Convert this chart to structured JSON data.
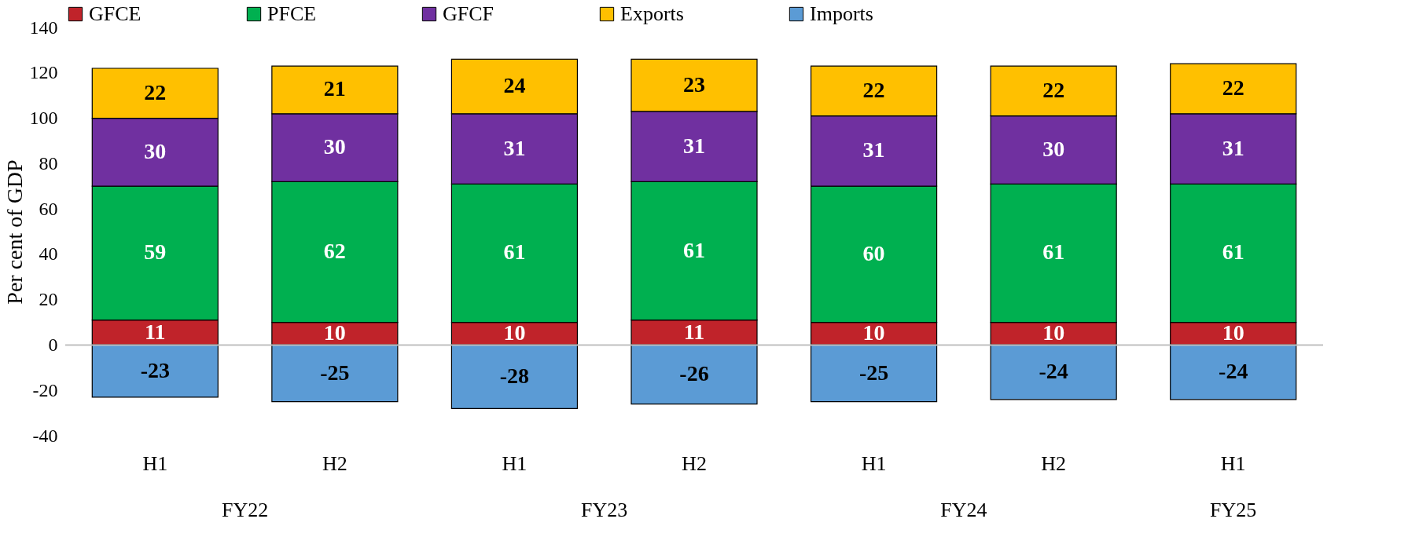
{
  "chart_data": {
    "type": "bar",
    "stacked": true,
    "ylabel": "Per cent of GDP",
    "categories": [
      "H1",
      "H2",
      "H1",
      "H2",
      "H1",
      "H2",
      "H1"
    ],
    "annotations": [
      "FY22",
      "FY23",
      "FY24",
      "FY25"
    ],
    "series": [
      {
        "name": "GFCE",
        "color": "#c0232a",
        "values": [
          11,
          10,
          10,
          11,
          10,
          10,
          10
        ]
      },
      {
        "name": "PFCE",
        "color": "#00b050",
        "values": [
          59,
          62,
          61,
          61,
          60,
          61,
          61
        ]
      },
      {
        "name": "GFCF",
        "color": "#7030a0",
        "values": [
          30,
          30,
          31,
          31,
          31,
          30,
          31
        ]
      },
      {
        "name": "Exports",
        "color": "#ffc000",
        "values": [
          22,
          21,
          24,
          23,
          22,
          22,
          22
        ]
      },
      {
        "name": "Imports",
        "color": "#5b9bd5",
        "values": [
          -23,
          -25,
          -28,
          -26,
          -25,
          -24,
          -24
        ]
      }
    ],
    "ylim": [
      -40,
      140
    ],
    "yticks": [
      -40,
      -20,
      0,
      20,
      40,
      60,
      80,
      100,
      120,
      140
    ],
    "ref_lines": [
      {
        "axis": "y",
        "value": 0,
        "color": "#bfbfbf"
      }
    ],
    "grid": false,
    "legend": "top",
    "data_labels": true
  }
}
